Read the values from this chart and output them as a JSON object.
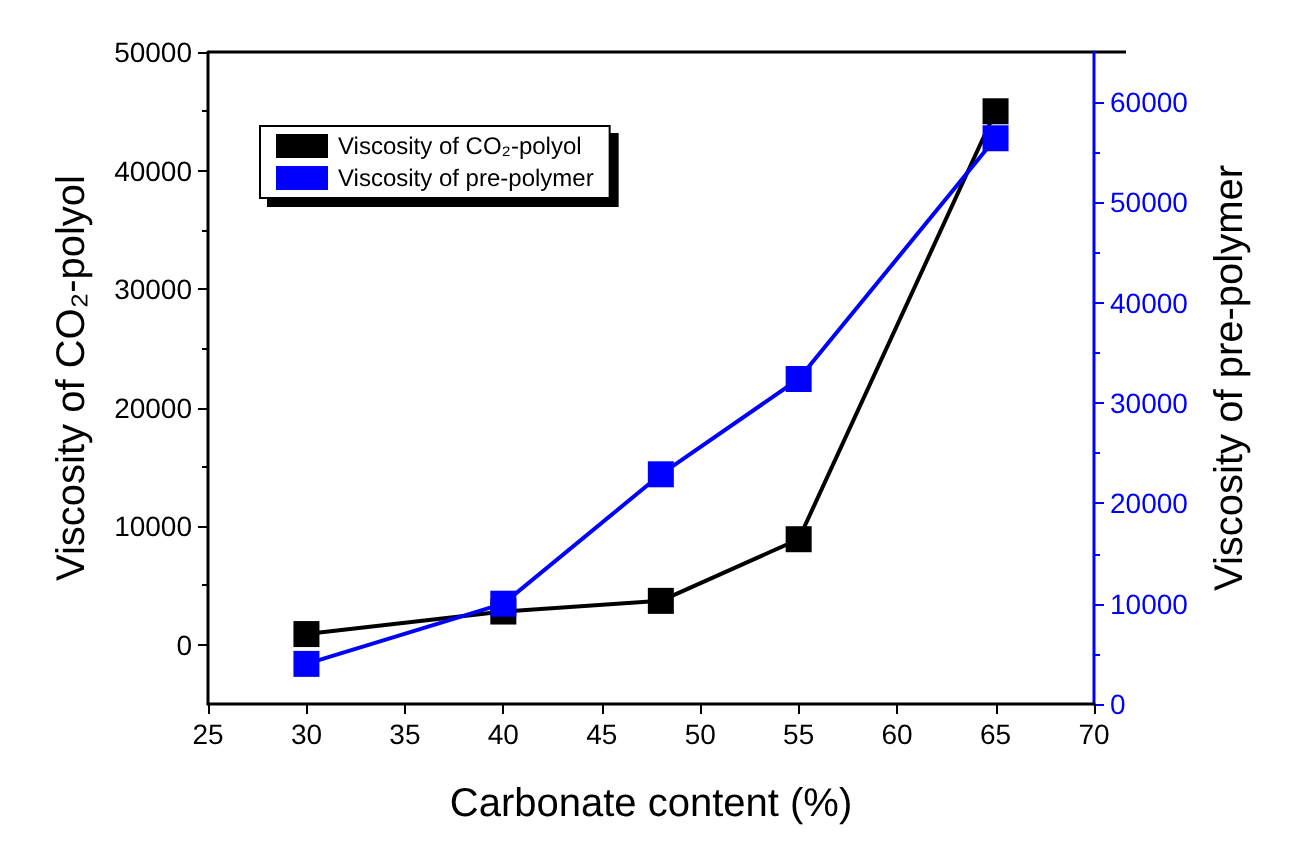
{
  "chart_data": {
    "type": "line",
    "xlabel": "Carbonate content (%)",
    "ylabel": "Viscosity of CO₂-polyol",
    "y2label": "Viscosity of pre-polymer",
    "x": [
      30,
      40,
      48,
      55,
      65
    ],
    "series": [
      {
        "name": "Viscosity of CO₂-polyol",
        "color": "#000000",
        "values": [
          900,
          2800,
          3700,
          8900,
          45000
        ]
      },
      {
        "name": "Viscosity of pre-polymer",
        "color": "#0000ff",
        "axis": "y2",
        "values": [
          4000,
          10000,
          22900,
          32400,
          56400
        ]
      }
    ],
    "xlim": [
      25,
      70
    ],
    "xticks": [
      25,
      30,
      35,
      40,
      45,
      50,
      55,
      60,
      65,
      70
    ],
    "ylim": [
      -5000,
      50000
    ],
    "yticks": [
      0,
      10000,
      20000,
      30000,
      40000,
      50000
    ],
    "y2lim": [
      0,
      65000
    ],
    "y2ticks": [
      0,
      10000,
      20000,
      30000,
      40000,
      50000,
      60000
    ],
    "marker": "square",
    "line_style": "solid",
    "legend": "top left",
    "grid": false
  }
}
